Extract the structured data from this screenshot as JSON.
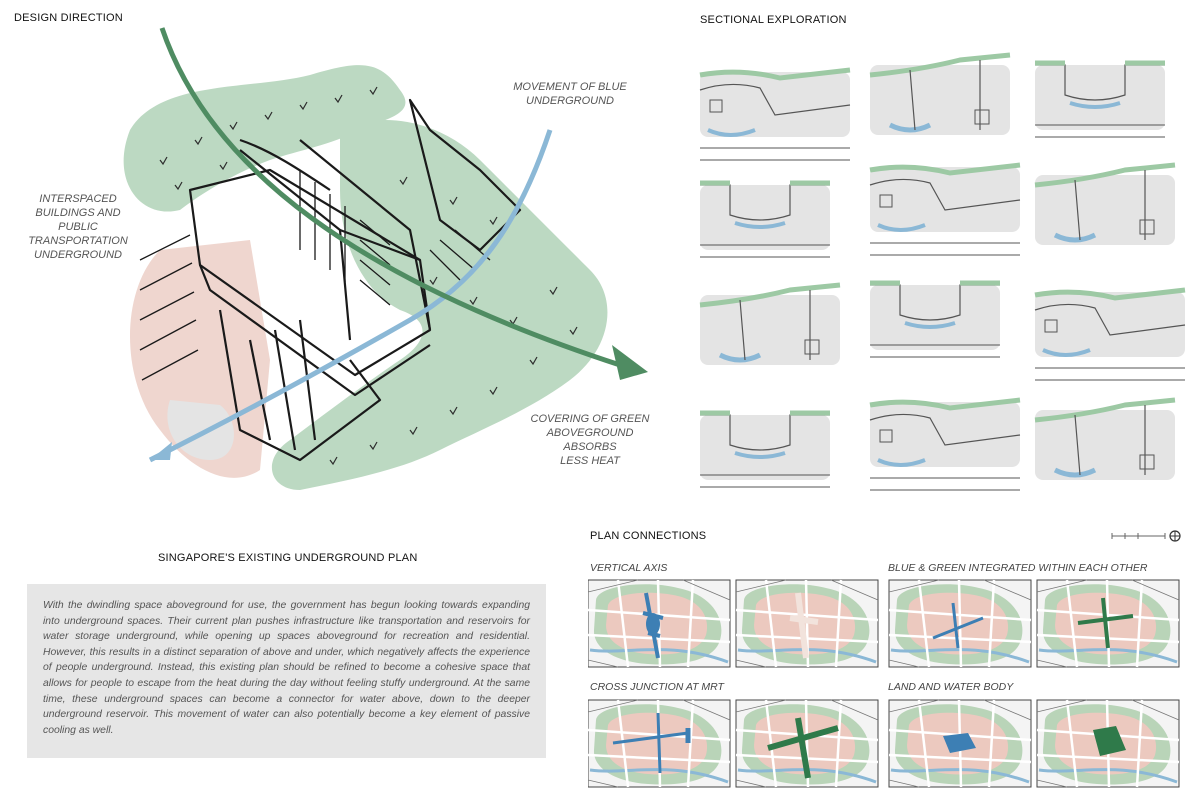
{
  "design_direction": {
    "heading": "DESIGN DIRECTION",
    "annotations": {
      "interspaced": [
        "INTERSPACED",
        "BUILDINGS AND",
        "PUBLIC",
        "TRANSPORTATION",
        "UNDERGROUND"
      ],
      "blue": [
        "MOVEMENT OF BLUE",
        "UNDERGROUND"
      ],
      "green": [
        "COVERING OF GREEN",
        "ABOVEGROUND",
        "ABSORBS",
        "LESS HEAT"
      ]
    }
  },
  "sectional": {
    "heading": "SECTIONAL EXPLORATION"
  },
  "existing_plan": {
    "heading": "SINGAPORE'S EXISTING UNDERGROUND PLAN",
    "body": "With the dwindling space aboveground for use, the government has begun looking towards expanding into underground spaces. Their current plan pushes infrastructure like transportation and reservoirs for water storage underground, while opening up spaces aboveground for recreation and residential. However, this results in a distinct separation of above and under, which negatively affects the experience of people underground. Instead, this existing plan should be refined to become a cohesive space that allows for people to escape from the heat during the day without feeling stuffy underground. At the same time, these underground spaces can become a connector for water above, down to the deeper underground reservoir. This movement of water can also potentially become a key element of passive cooling as well."
  },
  "plan_connections": {
    "heading": "PLAN CONNECTIONS",
    "labels": {
      "vertical_axis": "VERTICAL AXIS",
      "blue_green": "BLUE & GREEN INTEGRATED WITHIN EACH OTHER",
      "cross_junction": "CROSS JUNCTION AT MRT",
      "land_water": "LAND AND WATER BODY"
    }
  },
  "colors": {
    "green": "#9dc9a4",
    "green_dark": "#2f7a4a",
    "blue": "#8bb8d6",
    "blue_dark": "#3d7fb4",
    "pink": "#efd6cf",
    "grey_fill": "#e6e6e6"
  },
  "icons": [
    "north-arrow-icon",
    "scale-bar-icon",
    "blue-arrow-icon",
    "green-arrow-icon"
  ]
}
